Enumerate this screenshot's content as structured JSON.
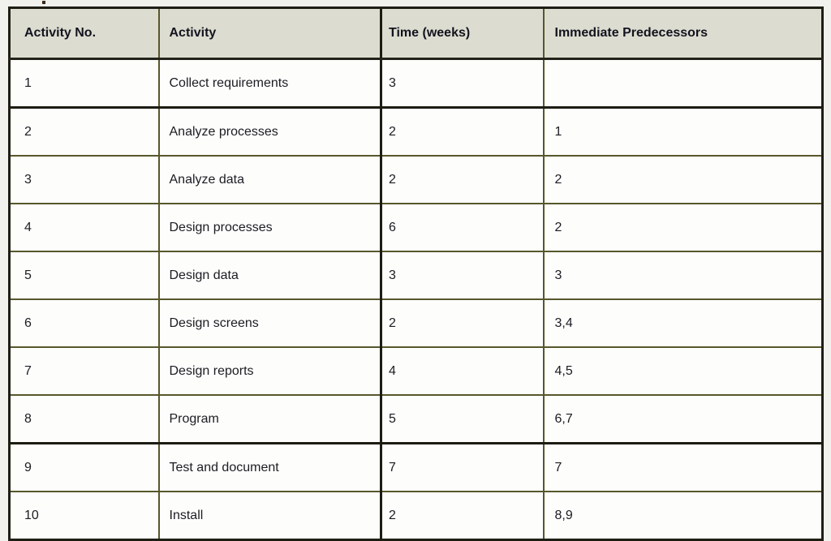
{
  "page": {
    "background_color": "#f1f1ee",
    "table_outer_border_color": "#1e1e14",
    "grid_line_color": "#57572c",
    "header_background_color": "#dcddd0",
    "header_text_color": "#13131f",
    "body_text_color": "#1c1c22"
  },
  "table": {
    "columns": [
      {
        "label": "Activity No."
      },
      {
        "label": "Activity"
      },
      {
        "label": "Time (weeks)"
      },
      {
        "label": "Immediate Predecessors"
      }
    ],
    "rows": [
      {
        "activity_no": "1",
        "activity": "Collect requirements",
        "time_weeks": "3",
        "predecessors": ""
      },
      {
        "activity_no": "2",
        "activity": "Analyze processes",
        "time_weeks": "2",
        "predecessors": "1"
      },
      {
        "activity_no": "3",
        "activity": "Analyze data",
        "time_weeks": "2",
        "predecessors": "2"
      },
      {
        "activity_no": "4",
        "activity": "Design processes",
        "time_weeks": "6",
        "predecessors": "2"
      },
      {
        "activity_no": "5",
        "activity": "Design data",
        "time_weeks": "3",
        "predecessors": "3"
      },
      {
        "activity_no": "6",
        "activity": "Design screens",
        "time_weeks": "2",
        "predecessors": "3,4"
      },
      {
        "activity_no": "7",
        "activity": "Design reports",
        "time_weeks": "4",
        "predecessors": "4,5"
      },
      {
        "activity_no": "8",
        "activity": "Program",
        "time_weeks": "5",
        "predecessors": "6,7"
      },
      {
        "activity_no": "9",
        "activity": "Test and document",
        "time_weeks": "7",
        "predecessors": "7"
      },
      {
        "activity_no": "10",
        "activity": "Install",
        "time_weeks": "2",
        "predecessors": "8,9"
      }
    ]
  }
}
